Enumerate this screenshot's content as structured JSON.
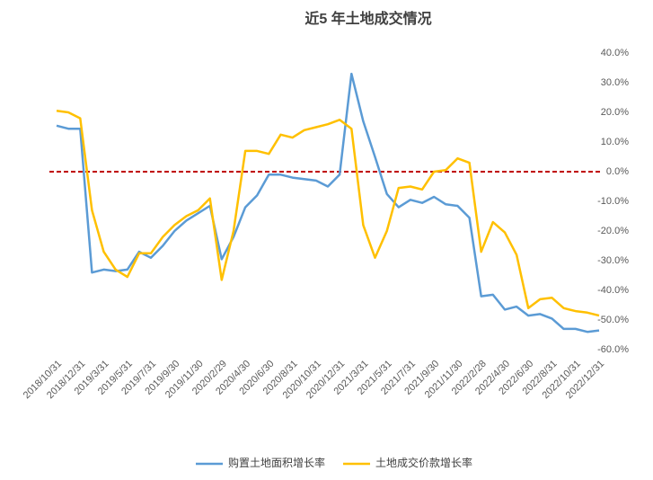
{
  "chart_data": {
    "type": "line",
    "title": "近5 年土地成交情况",
    "categories": [
      "2018/10/31",
      null,
      "2018/12/31",
      null,
      "2019/3/31",
      null,
      "2019/5/31",
      null,
      "2019/7/31",
      null,
      "2019/9/30",
      null,
      "2019/11/30",
      null,
      "2020/2/29",
      null,
      "2020/4/30",
      null,
      "2020/6/30",
      null,
      "2020/8/31",
      null,
      "2020/10/31",
      null,
      "2020/12/31",
      null,
      "2021/3/31",
      null,
      "2021/5/31",
      null,
      "2021/7/31",
      null,
      "2021/9/30",
      null,
      "2021/11/30",
      null,
      "2022/2/28",
      null,
      "2022/4/30",
      null,
      "2022/6/30",
      null,
      "2022/8/31",
      null,
      "2022/10/31",
      null,
      "2022/12/31"
    ],
    "series": [
      {
        "name": "购置土地面积增长率",
        "color": "#5b9bd5",
        "values": [
          15.5,
          14.5,
          14.5,
          -34,
          -33,
          -33.5,
          -33,
          -27,
          -29,
          -25,
          -20,
          -16.5,
          -14,
          -11.5,
          -29.5,
          -22,
          -12,
          -8,
          -1,
          -1,
          -2,
          -2.5,
          -3,
          -5,
          -1,
          33,
          17,
          5,
          -7.5,
          -12,
          -9.5,
          -10.5,
          -8.5,
          -11,
          -11.5,
          -15.5,
          -42,
          -41.5,
          -46.5,
          -45.5,
          -48.5,
          -48,
          -49.5,
          -53,
          -53,
          -54,
          -53.5
        ]
      },
      {
        "name": "土地成交价款增长率",
        "color": "#ffc000",
        "values": [
          20.5,
          20,
          18,
          -13,
          -27,
          -33,
          -35.5,
          -27.5,
          -27.5,
          -22,
          -18,
          -15,
          -13,
          -9,
          -36.5,
          -20,
          7,
          7,
          6,
          12.5,
          11.5,
          14,
          15,
          16,
          17.5,
          14.5,
          -18,
          -29,
          -20,
          -5.5,
          -5,
          -6,
          0,
          0.5,
          4.5,
          3,
          -27,
          -17,
          -20.5,
          -28,
          -46,
          -43,
          -42.5,
          -46,
          -47,
          -47.5,
          -48.5
        ]
      }
    ],
    "ylim": [
      -60,
      40
    ],
    "yticks": [
      {
        "value": 40,
        "label": "40.0%"
      },
      {
        "value": 30,
        "label": "30.0%"
      },
      {
        "value": 20,
        "label": "20.0%"
      },
      {
        "value": 10,
        "label": "10.0%"
      },
      {
        "value": 0,
        "label": "0.0%"
      },
      {
        "value": -10,
        "label": "-10.0%"
      },
      {
        "value": -20,
        "label": "-20.0%"
      },
      {
        "value": -30,
        "label": "-30.0%"
      },
      {
        "value": -40,
        "label": "-40.0%"
      },
      {
        "value": -50,
        "label": "-50.0%"
      },
      {
        "value": -60,
        "label": "-60.0%"
      }
    ],
    "zero_line_color": "#c00000"
  }
}
